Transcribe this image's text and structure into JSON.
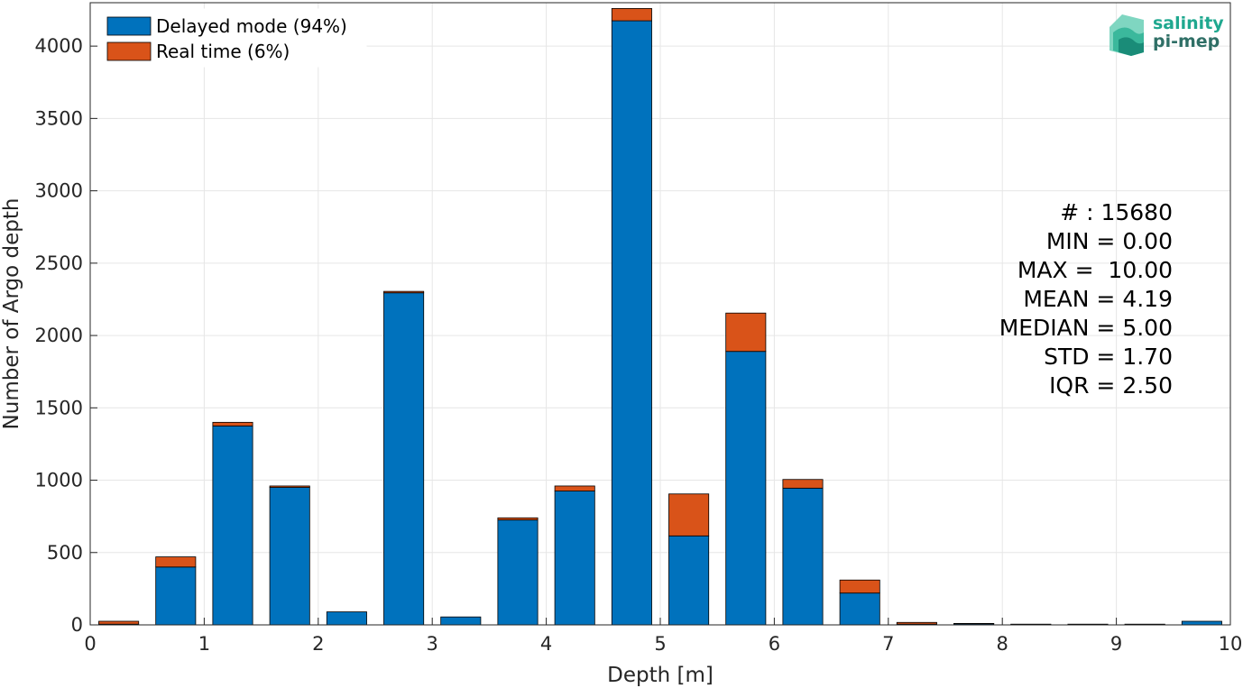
{
  "chart_data": {
    "type": "bar",
    "stacked": true,
    "xlabel": "Depth [m]",
    "ylabel": "Number of Argo depth",
    "xlim": [
      0,
      10
    ],
    "ylim": [
      0,
      4300
    ],
    "xticks": [
      "0",
      "1",
      "2",
      "3",
      "4",
      "5",
      "6",
      "7",
      "8",
      "9",
      "10"
    ],
    "yticks": [
      "0",
      "500",
      "1000",
      "1500",
      "2000",
      "2500",
      "3000",
      "3500",
      "4000"
    ],
    "ytick_values": [
      0,
      500,
      1000,
      1500,
      2000,
      2500,
      3000,
      3500,
      4000
    ],
    "grid": true,
    "legend_position": "top-left",
    "bin_centers": [
      0.25,
      0.75,
      1.25,
      1.75,
      2.25,
      2.75,
      3.25,
      3.75,
      4.25,
      4.75,
      5.25,
      5.75,
      6.25,
      6.75,
      7.25,
      7.75,
      8.25,
      8.75,
      9.25,
      9.75
    ],
    "bar_width": 0.35,
    "series": [
      {
        "name": "Delayed mode (94%)",
        "color": "#0072BD",
        "values": [
          5,
          400,
          1375,
          950,
          90,
          2295,
          55,
          725,
          925,
          4175,
          615,
          1890,
          945,
          220,
          5,
          8,
          3,
          3,
          3,
          25
        ]
      },
      {
        "name": "Real time (6%)",
        "color": "#D95319",
        "values": [
          20,
          70,
          25,
          10,
          0,
          10,
          0,
          15,
          35,
          85,
          290,
          265,
          60,
          90,
          12,
          2,
          2,
          2,
          2,
          0
        ]
      }
    ],
    "stats": [
      "# : 15680",
      "MIN = 0.00",
      "MAX =  10.00",
      "MEAN = 4.19",
      "MEDIAN = 5.00",
      "STD = 1.70",
      "IQR = 2.50"
    ]
  },
  "logo": {
    "line1": "salinity",
    "line2": "pi-mep"
  }
}
